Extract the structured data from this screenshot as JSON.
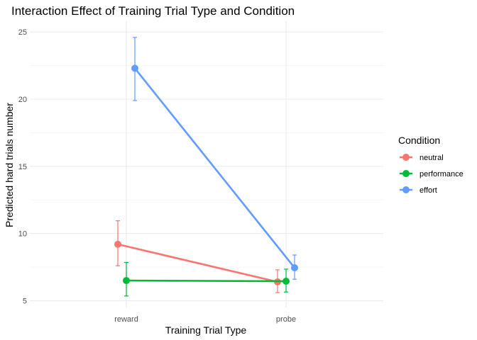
{
  "chart_data": {
    "type": "line",
    "title": "Interaction Effect of Training Trial Type and Condition",
    "xlabel": "Training Trial Type",
    "ylabel": "Predicted hard trials number",
    "categories": [
      "reward",
      "probe"
    ],
    "ylim": [
      4.5,
      25.8
    ],
    "yticks": [
      5,
      10,
      15,
      20,
      25
    ],
    "grid": true,
    "legend": {
      "title": "Condition",
      "position": "right"
    },
    "series": [
      {
        "name": "neutral",
        "color": "#F8766D",
        "values": [
          9.2,
          6.4
        ],
        "lower": [
          7.6,
          5.6
        ],
        "upper": [
          10.95,
          7.3
        ]
      },
      {
        "name": "performance",
        "color": "#00BA38",
        "values": [
          6.5,
          6.45
        ],
        "lower": [
          5.35,
          5.65
        ],
        "upper": [
          7.85,
          7.35
        ]
      },
      {
        "name": "effort",
        "color": "#619CFF",
        "values": [
          22.3,
          7.45
        ],
        "lower": [
          19.9,
          6.6
        ],
        "upper": [
          24.6,
          8.4
        ]
      }
    ]
  }
}
